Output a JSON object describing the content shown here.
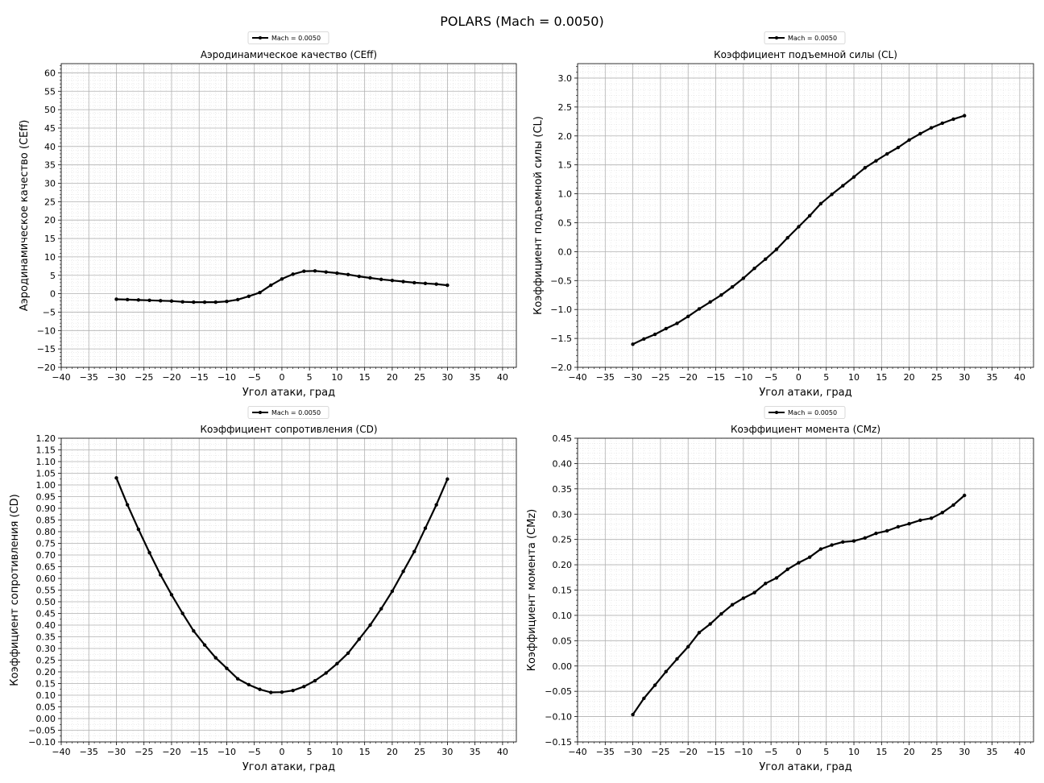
{
  "figure": {
    "title": "POLARS (Mach = 0.0050)"
  },
  "legend_label": "Mach = 0.0050",
  "colors": {
    "line": "#000000",
    "major_grid": "#b0b0b0",
    "minor_grid": "#d9d9d9"
  },
  "chart_data": [
    {
      "id": "ceff",
      "type": "line",
      "title": "Аэродинамическое качество (CEff)",
      "xlabel": "Угол атаки, град",
      "ylabel": "Аэродинамическое качество (CEff)",
      "xlim": [
        -40,
        42.5
      ],
      "ylim": [
        -20,
        62.5
      ],
      "xticks": [
        -40,
        -35,
        -30,
        -25,
        -20,
        -15,
        -10,
        -5,
        0,
        5,
        10,
        15,
        20,
        25,
        30,
        35,
        40
      ],
      "yticks": [
        -20,
        -15,
        -10,
        -5,
        0,
        5,
        10,
        15,
        20,
        25,
        30,
        35,
        40,
        45,
        50,
        55,
        60
      ],
      "yminor_step": 1,
      "ydecimals": 0,
      "grid": true,
      "legend": "top-center",
      "series": [
        {
          "name": "Mach = 0.0050",
          "x": [
            -30,
            -28,
            -26,
            -24,
            -22,
            -20,
            -18,
            -16,
            -14,
            -12,
            -10,
            -8,
            -6,
            -4,
            -2,
            0,
            2,
            4,
            6,
            8,
            10,
            12,
            14,
            16,
            18,
            20,
            22,
            24,
            26,
            28,
            30
          ],
          "y": [
            -1.5,
            -1.6,
            -1.7,
            -1.8,
            -1.9,
            -2.0,
            -2.2,
            -2.3,
            -2.3,
            -2.3,
            -2.1,
            -1.6,
            -0.7,
            0.3,
            2.3,
            4.0,
            5.3,
            6.1,
            6.2,
            5.9,
            5.6,
            5.2,
            4.7,
            4.3,
            3.9,
            3.6,
            3.3,
            3.0,
            2.8,
            2.6,
            2.3
          ]
        }
      ]
    },
    {
      "id": "cl",
      "type": "line",
      "title": "Коэффициент подъемной силы (CL)",
      "xlabel": "Угол атаки, град",
      "ylabel": "Коэффициент подъемной силы (CL)",
      "xlim": [
        -40,
        42.5
      ],
      "ylim": [
        -2.0,
        3.25
      ],
      "xticks": [
        -40,
        -35,
        -30,
        -25,
        -20,
        -15,
        -10,
        -5,
        0,
        5,
        10,
        15,
        20,
        25,
        30,
        35,
        40
      ],
      "yticks": [
        -2.0,
        -1.5,
        -1.0,
        -0.5,
        0.0,
        0.5,
        1.0,
        1.5,
        2.0,
        2.5,
        3.0
      ],
      "yminor_step": 0.1,
      "ydecimals": 1,
      "grid": true,
      "legend": "top-center",
      "series": [
        {
          "name": "Mach = 0.0050",
          "x": [
            -30,
            -28,
            -26,
            -24,
            -22,
            -20,
            -18,
            -16,
            -14,
            -12,
            -10,
            -8,
            -6,
            -4,
            -2,
            0,
            2,
            4,
            6,
            8,
            10,
            12,
            14,
            16,
            18,
            20,
            22,
            24,
            26,
            28,
            30
          ],
          "y": [
            -1.6,
            -1.51,
            -1.43,
            -1.33,
            -1.24,
            -1.12,
            -0.99,
            -0.87,
            -0.75,
            -0.61,
            -0.46,
            -0.29,
            -0.13,
            0.04,
            0.24,
            0.43,
            0.62,
            0.83,
            0.99,
            1.14,
            1.29,
            1.45,
            1.57,
            1.69,
            1.8,
            1.93,
            2.04,
            2.14,
            2.22,
            2.29,
            2.35
          ]
        }
      ]
    },
    {
      "id": "cd",
      "type": "line",
      "title": "Коэффициент сопротивления (CD)",
      "xlabel": "Угол атаки, град",
      "ylabel": "Коэффициент сопротивления (CD)",
      "xlim": [
        -40,
        42.5
      ],
      "ylim": [
        -0.1,
        1.2
      ],
      "xticks": [
        -40,
        -35,
        -30,
        -25,
        -20,
        -15,
        -10,
        -5,
        0,
        5,
        10,
        15,
        20,
        25,
        30,
        35,
        40
      ],
      "yticks": [
        -0.1,
        -0.05,
        0.0,
        0.05,
        0.1,
        0.15,
        0.2,
        0.25,
        0.3,
        0.35,
        0.4,
        0.45,
        0.5,
        0.55,
        0.6,
        0.65,
        0.7,
        0.75,
        0.8,
        0.85,
        0.9,
        0.95,
        1.0,
        1.05,
        1.1,
        1.15,
        1.2
      ],
      "yminor_step": 0.025,
      "ydecimals": 2,
      "grid": true,
      "legend": "top-center",
      "series": [
        {
          "name": "Mach = 0.0050",
          "x": [
            -30,
            -28,
            -26,
            -24,
            -22,
            -20,
            -18,
            -16,
            -14,
            -12,
            -10,
            -8,
            -6,
            -4,
            -2,
            0,
            2,
            4,
            6,
            8,
            10,
            12,
            14,
            16,
            18,
            20,
            22,
            24,
            26,
            28,
            30
          ],
          "y": [
            1.03,
            0.915,
            0.81,
            0.71,
            0.615,
            0.53,
            0.45,
            0.375,
            0.315,
            0.26,
            0.215,
            0.17,
            0.145,
            0.125,
            0.112,
            0.113,
            0.12,
            0.137,
            0.162,
            0.195,
            0.235,
            0.28,
            0.34,
            0.4,
            0.47,
            0.545,
            0.63,
            0.715,
            0.815,
            0.915,
            1.025
          ]
        }
      ]
    },
    {
      "id": "cmz",
      "type": "line",
      "title": "Коэффициент момента (CMz)",
      "xlabel": "Угол атаки, град",
      "ylabel": "Коэффициент момента (CMz)",
      "xlim": [
        -40,
        42.5
      ],
      "ylim": [
        -0.15,
        0.45
      ],
      "xticks": [
        -40,
        -35,
        -30,
        -25,
        -20,
        -15,
        -10,
        -5,
        0,
        5,
        10,
        15,
        20,
        25,
        30,
        35,
        40
      ],
      "yticks": [
        -0.15,
        -0.1,
        -0.05,
        0.0,
        0.05,
        0.1,
        0.15,
        0.2,
        0.25,
        0.3,
        0.35,
        0.4,
        0.45
      ],
      "yminor_step": 0.01,
      "ydecimals": 2,
      "grid": true,
      "legend": "top-center",
      "series": [
        {
          "name": "Mach = 0.0050",
          "x": [
            -30,
            -28,
            -26,
            -24,
            -22,
            -20,
            -18,
            -16,
            -14,
            -12,
            -10,
            -8,
            -6,
            -4,
            -2,
            0,
            2,
            4,
            6,
            8,
            10,
            12,
            14,
            16,
            18,
            20,
            22,
            24,
            26,
            28,
            30
          ],
          "y": [
            -0.096,
            -0.064,
            -0.038,
            -0.011,
            0.014,
            0.038,
            0.066,
            0.083,
            0.103,
            0.121,
            0.134,
            0.145,
            0.163,
            0.174,
            0.191,
            0.204,
            0.215,
            0.231,
            0.239,
            0.245,
            0.247,
            0.253,
            0.262,
            0.267,
            0.275,
            0.281,
            0.288,
            0.292,
            0.303,
            0.318,
            0.337
          ]
        }
      ]
    }
  ]
}
